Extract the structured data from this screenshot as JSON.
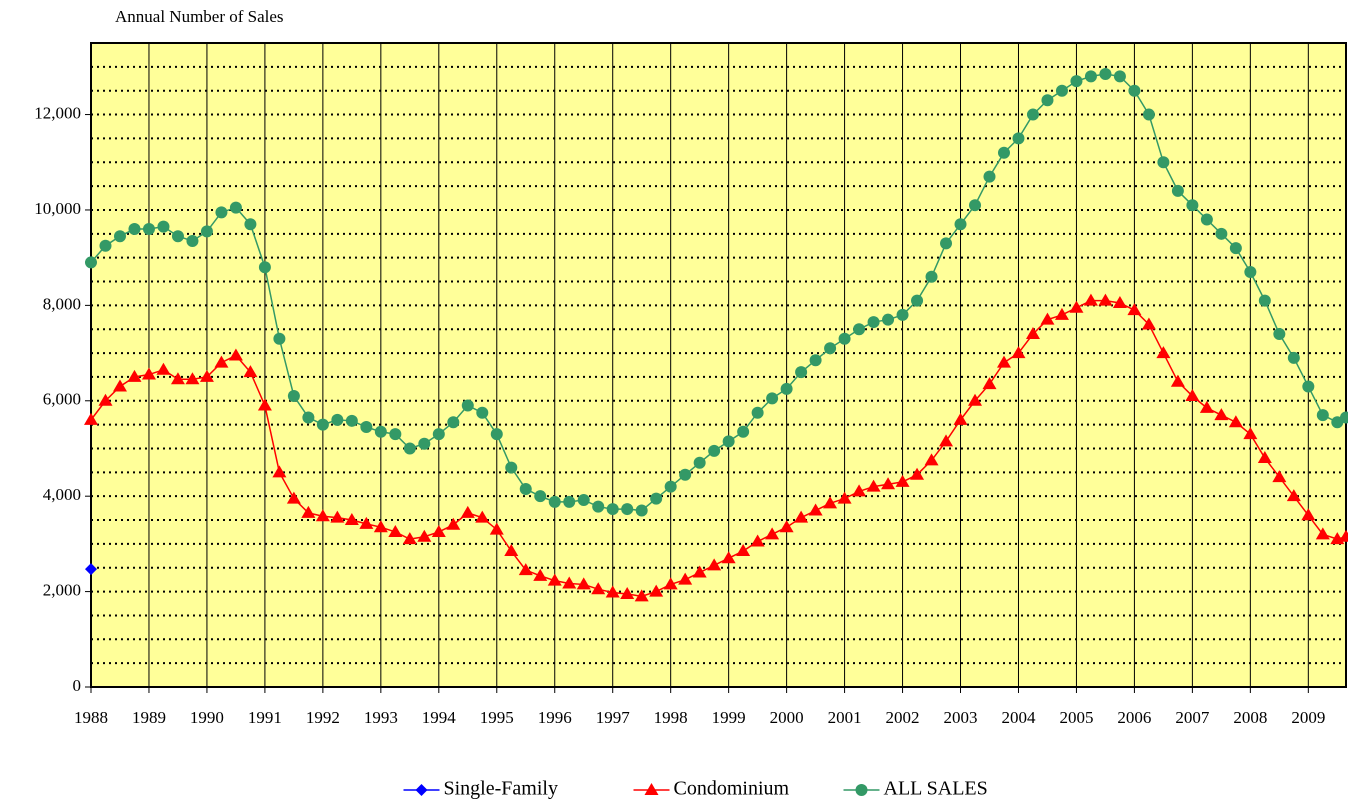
{
  "chart_data": {
    "type": "line",
    "title": "Annual Number of Sales",
    "x": [
      1988,
      1988.25,
      1988.5,
      1988.75,
      1989,
      1989.25,
      1989.5,
      1989.75,
      1990,
      1990.25,
      1990.5,
      1990.75,
      1991,
      1991.25,
      1991.5,
      1991.75,
      1992,
      1992.25,
      1992.5,
      1992.75,
      1993,
      1993.25,
      1993.5,
      1993.75,
      1994,
      1994.25,
      1994.5,
      1994.75,
      1995,
      1995.25,
      1995.5,
      1995.75,
      1996,
      1996.25,
      1996.5,
      1996.75,
      1997,
      1997.25,
      1997.5,
      1997.75,
      1998,
      1998.25,
      1998.5,
      1998.75,
      1999,
      1999.25,
      1999.5,
      1999.75,
      2000,
      2000.25,
      2000.5,
      2000.75,
      2001,
      2001.25,
      2001.5,
      2001.75,
      2002,
      2002.25,
      2002.5,
      2002.75,
      2003,
      2003.25,
      2003.5,
      2003.75,
      2004,
      2004.25,
      2004.5,
      2004.75,
      2005,
      2005.25,
      2005.5,
      2005.75,
      2006,
      2006.25,
      2006.5,
      2006.75,
      2007,
      2007.25,
      2007.5,
      2007.75,
      2008,
      2008.25,
      2008.5,
      2008.75,
      2009,
      2009.25,
      2009.5,
      2009.65
    ],
    "series": [
      {
        "name": "Single-Family",
        "color": "#0000ff",
        "marker": "diamond",
        "x": [
          1988
        ],
        "values": [
          2470
        ]
      },
      {
        "name": "Condominium",
        "color": "#ff0000",
        "marker": "triangle",
        "values": [
          5600,
          6000,
          6300,
          6500,
          6550,
          6650,
          6450,
          6450,
          6500,
          6800,
          6950,
          6600,
          5900,
          4500,
          3950,
          3650,
          3580,
          3550,
          3500,
          3420,
          3350,
          3250,
          3100,
          3150,
          3250,
          3400,
          3650,
          3550,
          3300,
          2850,
          2450,
          2330,
          2230,
          2170,
          2150,
          2050,
          1980,
          1950,
          1900,
          2000,
          2150,
          2250,
          2400,
          2550,
          2700,
          2850,
          3050,
          3200,
          3350,
          3550,
          3700,
          3850,
          3950,
          4100,
          4200,
          4250,
          4300,
          4450,
          4750,
          5150,
          5600,
          6000,
          6350,
          6800,
          7000,
          7400,
          7700,
          7800,
          7950,
          8100,
          8100,
          8050,
          7900,
          7600,
          7000,
          6400,
          6100,
          5850,
          5700,
          5550,
          5300,
          4800,
          4400,
          4000,
          3600,
          3200,
          3100,
          3150
        ]
      },
      {
        "name": "ALL SALES",
        "color": "#339966",
        "marker": "circle",
        "values": [
          8900,
          9250,
          9450,
          9600,
          9600,
          9650,
          9450,
          9350,
          9550,
          9950,
          10050,
          9700,
          8800,
          7300,
          6100,
          5650,
          5500,
          5600,
          5580,
          5450,
          5350,
          5300,
          5000,
          5100,
          5300,
          5550,
          5900,
          5750,
          5300,
          4600,
          4150,
          4000,
          3880,
          3880,
          3920,
          3780,
          3730,
          3730,
          3700,
          3950,
          4200,
          4450,
          4700,
          4950,
          5150,
          5350,
          5750,
          6050,
          6250,
          6600,
          6850,
          7100,
          7300,
          7500,
          7650,
          7700,
          7800,
          8100,
          8600,
          9300,
          9700,
          10100,
          10700,
          11200,
          11500,
          12000,
          12300,
          12500,
          12700,
          12800,
          12850,
          12800,
          12500,
          12000,
          11000,
          10400,
          10100,
          9800,
          9500,
          9200,
          8700,
          8100,
          7400,
          6900,
          6300,
          5700,
          5550,
          5650
        ]
      }
    ],
    "xlim": [
      1988,
      2009.65
    ],
    "xticks": [
      1988,
      1989,
      1990,
      1991,
      1992,
      1993,
      1994,
      1995,
      1996,
      1997,
      1998,
      1999,
      2000,
      2001,
      2002,
      2003,
      2004,
      2005,
      2006,
      2007,
      2008,
      2009
    ],
    "ylim": [
      0,
      13500
    ],
    "yticks": [
      0,
      {
        "value": 2000,
        "label": "2,000"
      },
      {
        "value": 4000,
        "label": "4,000"
      },
      {
        "value": 6000,
        "label": "6,000"
      },
      {
        "value": 8000,
        "label": "8,000"
      },
      {
        "value": 10000,
        "label": "10,000"
      },
      {
        "value": 12000,
        "label": "12,000"
      }
    ],
    "ygrid": [
      500,
      1000,
      1500,
      2000,
      2500,
      3000,
      3500,
      4000,
      4500,
      5000,
      5500,
      6000,
      6500,
      7000,
      7500,
      8000,
      8500,
      9000,
      9500,
      10000,
      10500,
      11000,
      11500,
      12000,
      12500,
      13000
    ],
    "grid": true,
    "plot_background": "#ffff99",
    "legend": "bottom"
  }
}
